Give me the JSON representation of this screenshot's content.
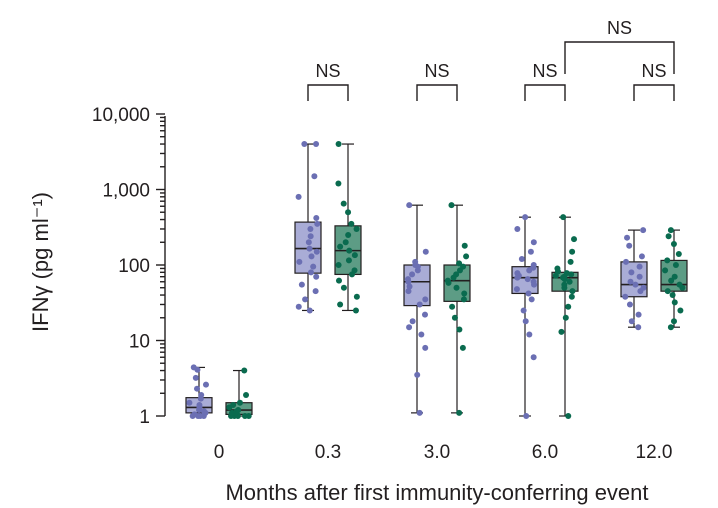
{
  "chart_data": {
    "type": "box",
    "title": "",
    "xlabel": "Months after first immunity-conferring event",
    "ylabel": "IFNγ (pg ml⁻¹)",
    "yscale": "log",
    "ylim": [
      1,
      10000
    ],
    "yticks": [
      {
        "value": 1,
        "label": "1"
      },
      {
        "value": 10,
        "label": "10"
      },
      {
        "value": 100,
        "label": "100"
      },
      {
        "value": 1000,
        "label": "1,000"
      },
      {
        "value": 10000,
        "label": "10,000"
      }
    ],
    "categories": [
      "0",
      "0.3",
      "3.0",
      "6.0",
      "12.0"
    ],
    "colors": {
      "series1": "#6b6fb3",
      "series1_fill": "#a9acd6",
      "series2": "#0a6b4f",
      "series2_fill": "#5d9c85"
    },
    "series": [
      {
        "boxes": [
          {
            "min": 1,
            "q1": 1.1,
            "median": 1.3,
            "q3": 1.75,
            "max": 4.4,
            "points": [
              1.0,
              1.0,
              1.0,
              1.0,
              1.05,
              1.1,
              1.15,
              1.2,
              1.3,
              1.4,
              1.5,
              1.7,
              1.9,
              2.3,
              2.6,
              3.2,
              4.1,
              4.4
            ]
          },
          {
            "min": 25,
            "q1": 78,
            "median": 165,
            "q3": 370,
            "max": 4000,
            "points": [
              25,
              28,
              35,
              45,
              55,
              70,
              80,
              95,
              110,
              130,
              150,
              165,
              200,
              240,
              300,
              350,
              420,
              800,
              1500,
              4000,
              4000
            ]
          },
          {
            "min": 1.1,
            "q1": 29,
            "median": 60,
            "q3": 100,
            "max": 620,
            "points": [
              1.1,
              3.5,
              8,
              12,
              15,
              18,
              22,
              30,
              35,
              45,
              52,
              60,
              65,
              75,
              85,
              95,
              100,
              110,
              150,
              620
            ]
          },
          {
            "min": 1,
            "q1": 42,
            "median": 68,
            "q3": 95,
            "max": 430,
            "points": [
              1,
              6,
              12,
              18,
              25,
              35,
              42,
              48,
              55,
              60,
              65,
              68,
              72,
              78,
              85,
              92,
              100,
              120,
              150,
              200,
              300,
              430
            ]
          },
          {
            "min": 15,
            "q1": 38,
            "median": 55,
            "q3": 110,
            "max": 290,
            "points": [
              15,
              18,
              22,
              30,
              38,
              45,
              50,
              55,
              60,
              70,
              80,
              95,
              110,
              130,
              180,
              230,
              290
            ]
          }
        ]
      },
      {
        "boxes": [
          {
            "min": 1,
            "q1": 1.05,
            "median": 1.2,
            "q3": 1.5,
            "max": 4.0,
            "points": [
              1.0,
              1.0,
              1.0,
              1.0,
              1.0,
              1.05,
              1.1,
              1.1,
              1.15,
              1.2,
              1.3,
              1.4,
              1.5,
              1.9,
              4.0
            ]
          },
          {
            "min": 25,
            "q1": 75,
            "median": 155,
            "q3": 330,
            "max": 4000,
            "points": [
              25,
              30,
              38,
              50,
              62,
              75,
              85,
              100,
              115,
              135,
              155,
              175,
              200,
              250,
              300,
              350,
              500,
              650,
              1200,
              4000
            ]
          },
          {
            "min": 1.1,
            "q1": 33,
            "median": 62,
            "q3": 100,
            "max": 620,
            "points": [
              1.1,
              8,
              14,
              20,
              28,
              35,
              42,
              50,
              58,
              62,
              68,
              75,
              85,
              95,
              105,
              130,
              180,
              620
            ]
          },
          {
            "min": 1,
            "q1": 45,
            "median": 68,
            "q3": 80,
            "max": 430,
            "points": [
              1,
              13,
              20,
              28,
              38,
              45,
              50,
              55,
              60,
              65,
              68,
              70,
              72,
              75,
              78,
              82,
              90,
              110,
              150,
              220,
              430
            ]
          },
          {
            "min": 15,
            "q1": 45,
            "median": 55,
            "q3": 115,
            "max": 290,
            "points": [
              15,
              18,
              25,
              32,
              40,
              45,
              50,
              55,
              62,
              70,
              85,
              100,
              115,
              140,
              190,
              240,
              290
            ]
          }
        ]
      }
    ],
    "annotations": [
      {
        "text": "NS",
        "groups": [
          1,
          1
        ],
        "series": [
          0,
          1
        ],
        "level": 0
      },
      {
        "text": "NS",
        "groups": [
          2,
          2
        ],
        "series": [
          0,
          1
        ],
        "level": 0
      },
      {
        "text": "NS",
        "groups": [
          3,
          3
        ],
        "series": [
          0,
          1
        ],
        "level": 0
      },
      {
        "text": "NS",
        "groups": [
          4,
          4
        ],
        "series": [
          0,
          1
        ],
        "level": 0
      },
      {
        "text": "NS",
        "groups": [
          3,
          4
        ],
        "series": [
          -1,
          -1
        ],
        "level": 1
      }
    ]
  }
}
